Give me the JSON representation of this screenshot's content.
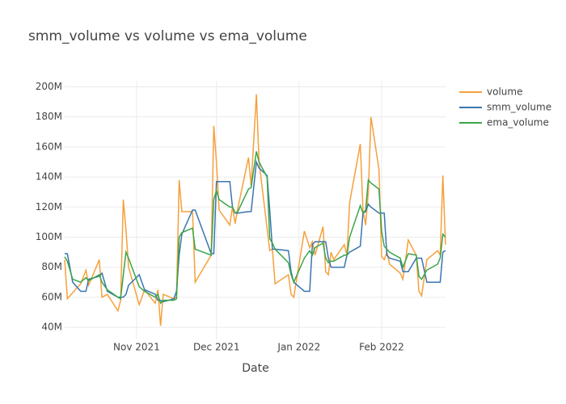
{
  "chart_data": {
    "type": "line",
    "title": "smm_volume vs volume vs ema_volume",
    "x_label": "Date",
    "x": [
      "2021-10-05",
      "2021-10-06",
      "2021-10-08",
      "2021-10-11",
      "2021-10-13",
      "2021-10-14",
      "2021-10-18",
      "2021-10-19",
      "2021-10-21",
      "2021-10-25",
      "2021-10-26",
      "2021-10-27",
      "2021-10-28",
      "2021-10-29",
      "2021-11-02",
      "2021-11-04",
      "2021-11-08",
      "2021-11-09",
      "2021-11-10",
      "2021-11-11",
      "2021-11-15",
      "2021-11-16",
      "2021-11-17",
      "2021-11-18",
      "2021-11-22",
      "2021-11-23",
      "2021-11-29",
      "2021-11-30",
      "2021-12-01",
      "2021-12-02",
      "2021-12-06",
      "2021-12-07",
      "2021-12-08",
      "2021-12-09",
      "2021-12-13",
      "2021-12-14",
      "2021-12-16",
      "2021-12-17",
      "2021-12-20",
      "2021-12-21",
      "2021-12-22",
      "2021-12-23",
      "2021-12-28",
      "2021-12-29",
      "2021-12-30",
      "2022-01-03",
      "2022-01-05",
      "2022-01-06",
      "2022-01-07",
      "2022-01-10",
      "2022-01-11",
      "2022-01-12",
      "2022-01-13",
      "2022-01-14",
      "2022-01-18",
      "2022-01-19",
      "2022-01-20",
      "2022-01-24",
      "2022-01-25",
      "2022-01-26",
      "2022-01-27",
      "2022-01-28",
      "2022-01-31",
      "2022-02-01",
      "2022-02-02",
      "2022-02-03",
      "2022-02-04",
      "2022-02-08",
      "2022-02-09",
      "2022-02-11",
      "2022-02-14",
      "2022-02-15",
      "2022-02-16",
      "2022-02-18",
      "2022-02-22",
      "2022-02-23",
      "2022-02-24",
      "2022-02-25"
    ],
    "series": [
      {
        "name": "volume",
        "color": "#f6a03c",
        "values": [
          85000000.0,
          59000000.0,
          63000000.0,
          69000000.0,
          78000000.0,
          68000000.0,
          85000000.0,
          60000000.0,
          62000000.0,
          51000000.0,
          58000000.0,
          125000000.0,
          105000000.0,
          80000000.0,
          55000000.0,
          65000000.0,
          56000000.0,
          65000000.0,
          41000000.0,
          62000000.0,
          59000000.0,
          60000000.0,
          138000000.0,
          117000000.0,
          117000000.0,
          70000000.0,
          88000000.0,
          174000000.0,
          150000000.0,
          118000000.0,
          108000000.0,
          120000000.0,
          109000000.0,
          119000000.0,
          153000000.0,
          134000000.0,
          195000000.0,
          150000000.0,
          106000000.0,
          91000000.0,
          92000000.0,
          69000000.0,
          75000000.0,
          62000000.0,
          60000000.0,
          104000000.0,
          93000000.0,
          97000000.0,
          88000000.0,
          107000000.0,
          77000000.0,
          75000000.0,
          90000000.0,
          85000000.0,
          95000000.0,
          88000000.0,
          123000000.0,
          162000000.0,
          118000000.0,
          108000000.0,
          130000000.0,
          180000000.0,
          145000000.0,
          87000000.0,
          85000000.0,
          90000000.0,
          82000000.0,
          76000000.0,
          72000000.0,
          98000000.0,
          88000000.0,
          64000000.0,
          61000000.0,
          85000000.0,
          91000000.0,
          88000000.0,
          141000000.0,
          95000000.0
        ]
      },
      {
        "name": "smm_volume",
        "color": "#3a75b0",
        "values": [
          89000000.0,
          89000000.0,
          70000000.0,
          64000000.0,
          64000000.0,
          72000000.0,
          74000000.0,
          76000000.0,
          64000000.0,
          60000000.0,
          60000000.0,
          60000000.0,
          62000000.0,
          68000000.0,
          75000000.0,
          65000000.0,
          62000000.0,
          58000000.0,
          58000000.0,
          57000000.0,
          59000000.0,
          64000000.0,
          88000000.0,
          102000000.0,
          118000000.0,
          118000000.0,
          89000000.0,
          89000000.0,
          137000000.0,
          137000000.0,
          137000000.0,
          120000000.0,
          116000000.0,
          116000000.0,
          117000000.0,
          117000000.0,
          150000000.0,
          146000000.0,
          141000000.0,
          118000000.0,
          92000000.0,
          92000000.0,
          91000000.0,
          77000000.0,
          70000000.0,
          64000000.0,
          64000000.0,
          95000000.0,
          97000000.0,
          97000000.0,
          97000000.0,
          86000000.0,
          80000000.0,
          80000000.0,
          80000000.0,
          88000000.0,
          90000000.0,
          94000000.0,
          116000000.0,
          117000000.0,
          122000000.0,
          120000000.0,
          116000000.0,
          116000000.0,
          116000000.0,
          88000000.0,
          86000000.0,
          84000000.0,
          77000000.0,
          77000000.0,
          86000000.0,
          86000000.0,
          86000000.0,
          70000000.0,
          70000000.0,
          70000000.0,
          90000000.0,
          91000000.0
        ]
      },
      {
        "name": "ema_volume",
        "color": "#3aa548",
        "values": [
          87000000.0,
          84000000.0,
          72000000.0,
          70000000.0,
          73000000.0,
          71000000.0,
          75000000.0,
          70000000.0,
          65000000.0,
          60000000.0,
          59000000.0,
          75000000.0,
          90000000.0,
          86000000.0,
          67000000.0,
          64000000.0,
          60000000.0,
          62000000.0,
          56000000.0,
          58000000.0,
          58000000.0,
          59000000.0,
          100000000.0,
          103000000.0,
          106000000.0,
          92000000.0,
          88000000.0,
          125000000.0,
          131000000.0,
          125000000.0,
          120000000.0,
          120000000.0,
          116000000.0,
          117000000.0,
          132000000.0,
          133000000.0,
          157000000.0,
          150000000.0,
          140000000.0,
          99000000.0,
          96000000.0,
          92000000.0,
          83000000.0,
          75000000.0,
          70000000.0,
          86000000.0,
          91000000.0,
          88000000.0,
          93000000.0,
          96000000.0,
          86000000.0,
          83000000.0,
          84000000.0,
          84000000.0,
          88000000.0,
          88000000.0,
          100000000.0,
          121000000.0,
          116000000.0,
          118000000.0,
          138000000.0,
          136000000.0,
          132000000.0,
          104000000.0,
          94000000.0,
          92000000.0,
          90000000.0,
          86000000.0,
          80000000.0,
          89000000.0,
          88000000.0,
          74000000.0,
          72000000.0,
          78000000.0,
          82000000.0,
          86000000.0,
          102000000.0,
          100000000.0
        ]
      }
    ],
    "xlim": [
      "2021-10-05",
      "2022-02-25"
    ],
    "xticks": [
      {
        "value": "2021-11-01",
        "label": "Nov 2021"
      },
      {
        "value": "2021-12-01",
        "label": "Dec 2021"
      },
      {
        "value": "2022-01-01",
        "label": "Jan 2022"
      },
      {
        "value": "2022-02-01",
        "label": "Feb 2022"
      }
    ],
    "ylim": [
      32000000.0,
      204000000.0
    ],
    "yticks": [
      {
        "value": 40000000.0,
        "label": "40M"
      },
      {
        "value": 60000000.0,
        "label": "60M"
      },
      {
        "value": 80000000.0,
        "label": "80M"
      },
      {
        "value": 100000000.0,
        "label": "100M"
      },
      {
        "value": 120000000.0,
        "label": "120M"
      },
      {
        "value": 140000000.0,
        "label": "140M"
      },
      {
        "value": 160000000.0,
        "label": "160M"
      },
      {
        "value": 180000000.0,
        "label": "180M"
      },
      {
        "value": 200000000.0,
        "label": "200M"
      }
    ],
    "grid": true,
    "legend": "right"
  }
}
